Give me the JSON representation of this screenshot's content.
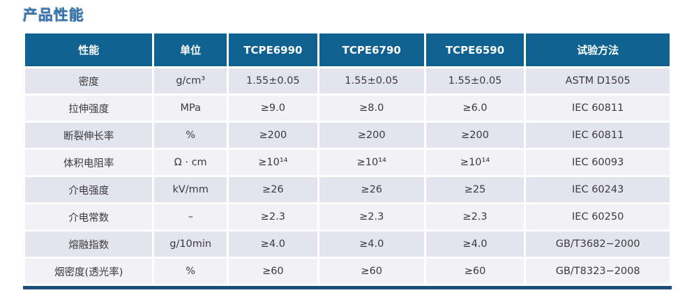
{
  "page_title": "产品性能",
  "table": {
    "columns": [
      "性能",
      "单位",
      "TCPE6990",
      "TCPE6790",
      "TCPE6590",
      "试验方法"
    ],
    "rows": [
      [
        "密度",
        "g/cm³",
        "1.55±0.05",
        "1.55±0.05",
        "1.55±0.05",
        "ASTM D1505"
      ],
      [
        "拉伸强度",
        "MPa",
        "≥9.0",
        "≥8.0",
        "≥6.0",
        "IEC 60811"
      ],
      [
        "断裂伸长率",
        "%",
        "≥200",
        "≥200",
        "≥200",
        "IEC 60811"
      ],
      [
        "体积电阻率",
        "Ω · cm",
        "≥10¹⁴",
        "≥10¹⁴",
        "≥10¹⁴",
        "IEC 60093"
      ],
      [
        "介电强度",
        "kV/mm",
        "≥26",
        "≥26",
        "≥25",
        "IEC 60243"
      ],
      [
        "介电常数",
        "–",
        "≥2.3",
        "≥2.3",
        "≥2.3",
        "IEC 60250"
      ],
      [
        "熔融指数",
        "g/10min",
        "≥4.0",
        "≥4.0",
        "≥4.0",
        "GB/T3682−2000"
      ],
      [
        "烟密度(透光率)",
        "%",
        "≥60",
        "≥60",
        "≥60",
        "GB/T8323−2008"
      ]
    ]
  },
  "colors": {
    "header_bg": "#0e6191",
    "row_odd_bg": "#e4e4ee",
    "row_even_bg": "#f1f1f6",
    "title_color": "#3573a9",
    "bottom_bar": "#1d4d7c",
    "cell_text": "#3a3a3e"
  }
}
